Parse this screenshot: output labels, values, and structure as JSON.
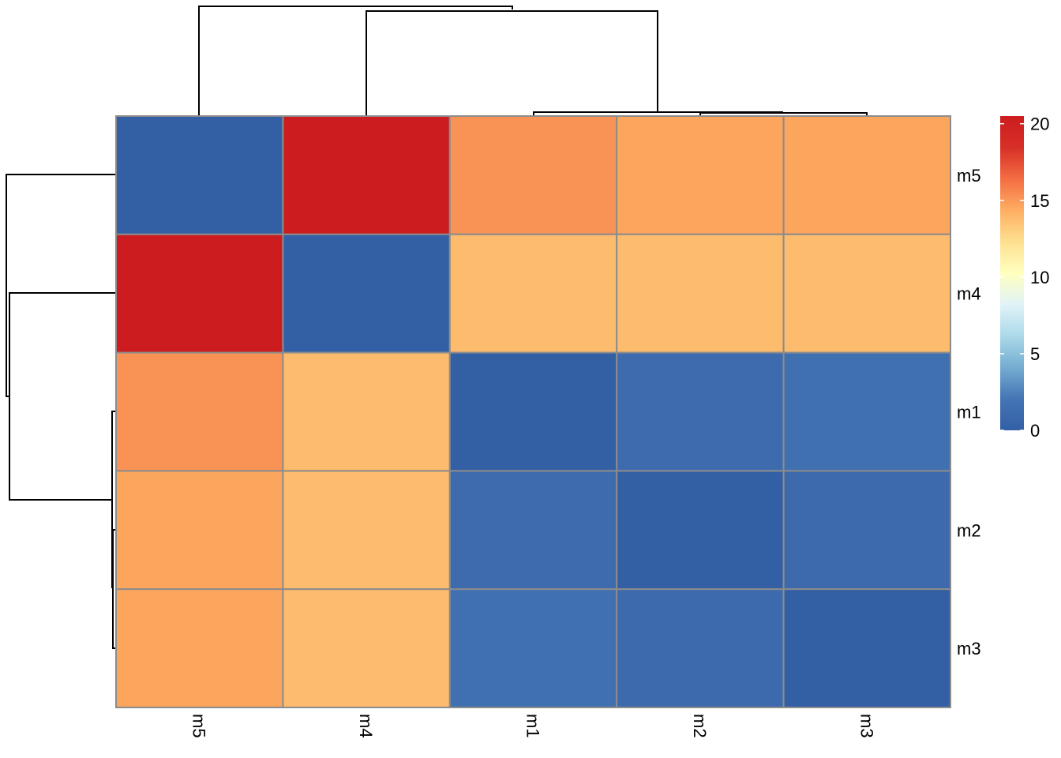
{
  "chart_data": {
    "type": "heatmap",
    "title": "",
    "xlabel": "",
    "ylabel": "",
    "rows": [
      "m5",
      "m4",
      "m1",
      "m2",
      "m3"
    ],
    "columns": [
      "m5",
      "m4",
      "m1",
      "m2",
      "m3"
    ],
    "values": [
      [
        0,
        20.5,
        15.2,
        14.6,
        14.6
      ],
      [
        20.5,
        0,
        13.8,
        13.8,
        13.8
      ],
      [
        15.2,
        13.8,
        0,
        1.1,
        1.6
      ],
      [
        14.6,
        13.8,
        1.1,
        0,
        1.0
      ],
      [
        14.6,
        13.8,
        1.6,
        1.0,
        0
      ]
    ],
    "color_scale": {
      "range": [
        0,
        20.5
      ],
      "ticks": [
        "0",
        "5",
        "10",
        "15",
        "20"
      ],
      "tick_values": [
        0,
        5,
        10,
        15,
        20
      ],
      "colors": [
        "#3360a5",
        "#ffffbf",
        "#d7191c"
      ],
      "stops": [
        "#3360a5",
        "#4575b4",
        "#74add1",
        "#abd9e9",
        "#e0f3f8",
        "#ffffbf",
        "#fee090",
        "#fdae61",
        "#f46d43",
        "#d73027",
        "#cc1c1f"
      ]
    },
    "cell_border_color": "#8c8c8c",
    "row_dendrogram": "left",
    "column_dendrogram": "top"
  }
}
